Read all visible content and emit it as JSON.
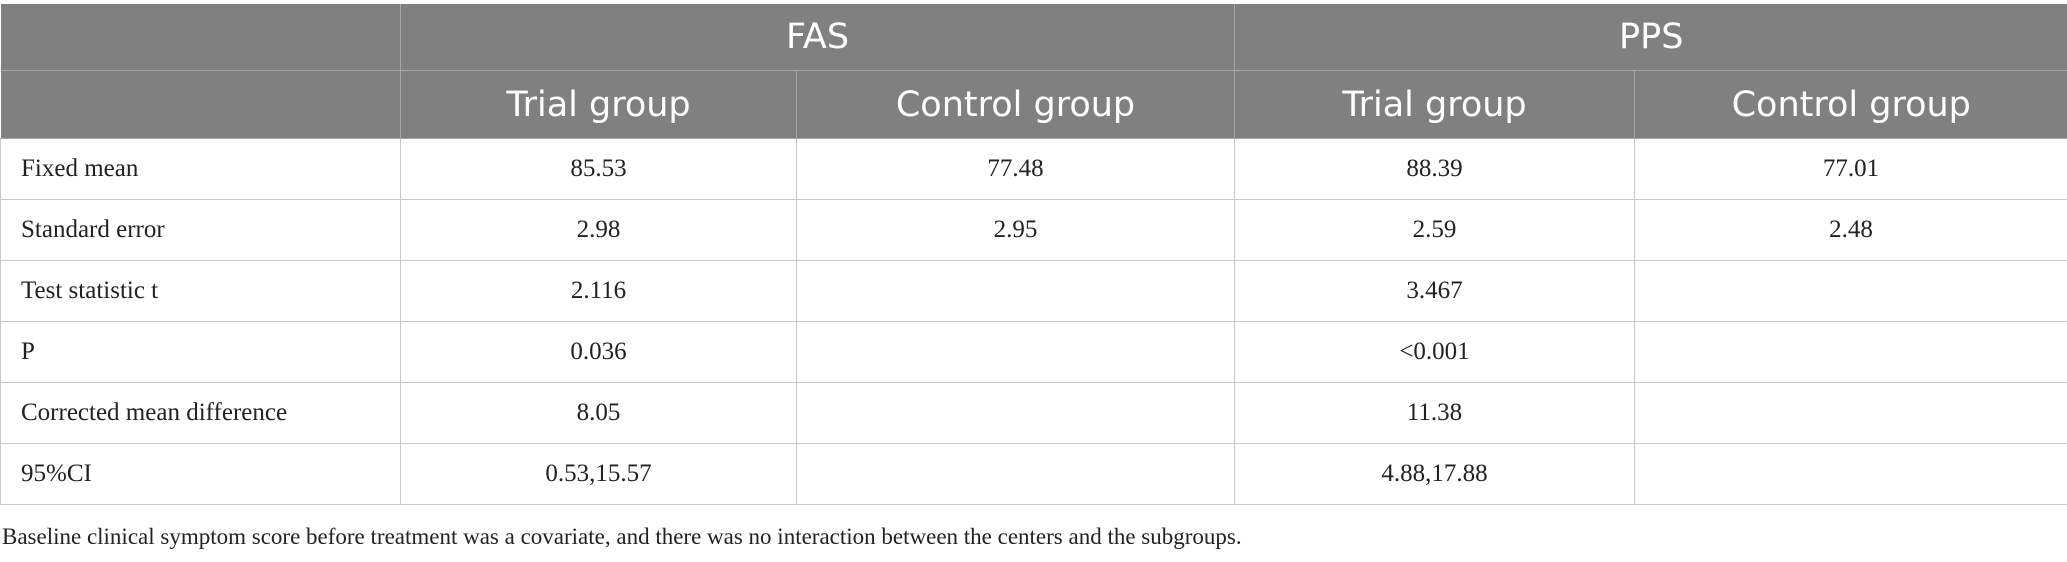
{
  "header": {
    "groups": [
      "FAS",
      "PPS"
    ],
    "subgroups": [
      "Trial group",
      "Control group",
      "Trial group",
      "Control group"
    ]
  },
  "rows": [
    {
      "label": "Fixed mean",
      "cells": [
        "85.53",
        "77.48",
        "88.39",
        "77.01"
      ]
    },
    {
      "label": "Standard error",
      "cells": [
        "2.98",
        "2.95",
        "2.59",
        "2.48"
      ]
    },
    {
      "label": "Test statistic t",
      "cells": [
        "2.116",
        "",
        "3.467",
        ""
      ]
    },
    {
      "label": "P",
      "cells": [
        "0.036",
        "",
        "<0.001",
        ""
      ]
    },
    {
      "label": "Corrected mean difference",
      "cells": [
        "8.05",
        "",
        "11.38",
        ""
      ]
    },
    {
      "label": "95%CI",
      "cells": [
        "0.53,15.57",
        "",
        "4.88,17.88",
        ""
      ]
    }
  ],
  "footnote": "Baseline clinical symptom score before treatment was a covariate, and there was no interaction between the centers and the subgroups."
}
